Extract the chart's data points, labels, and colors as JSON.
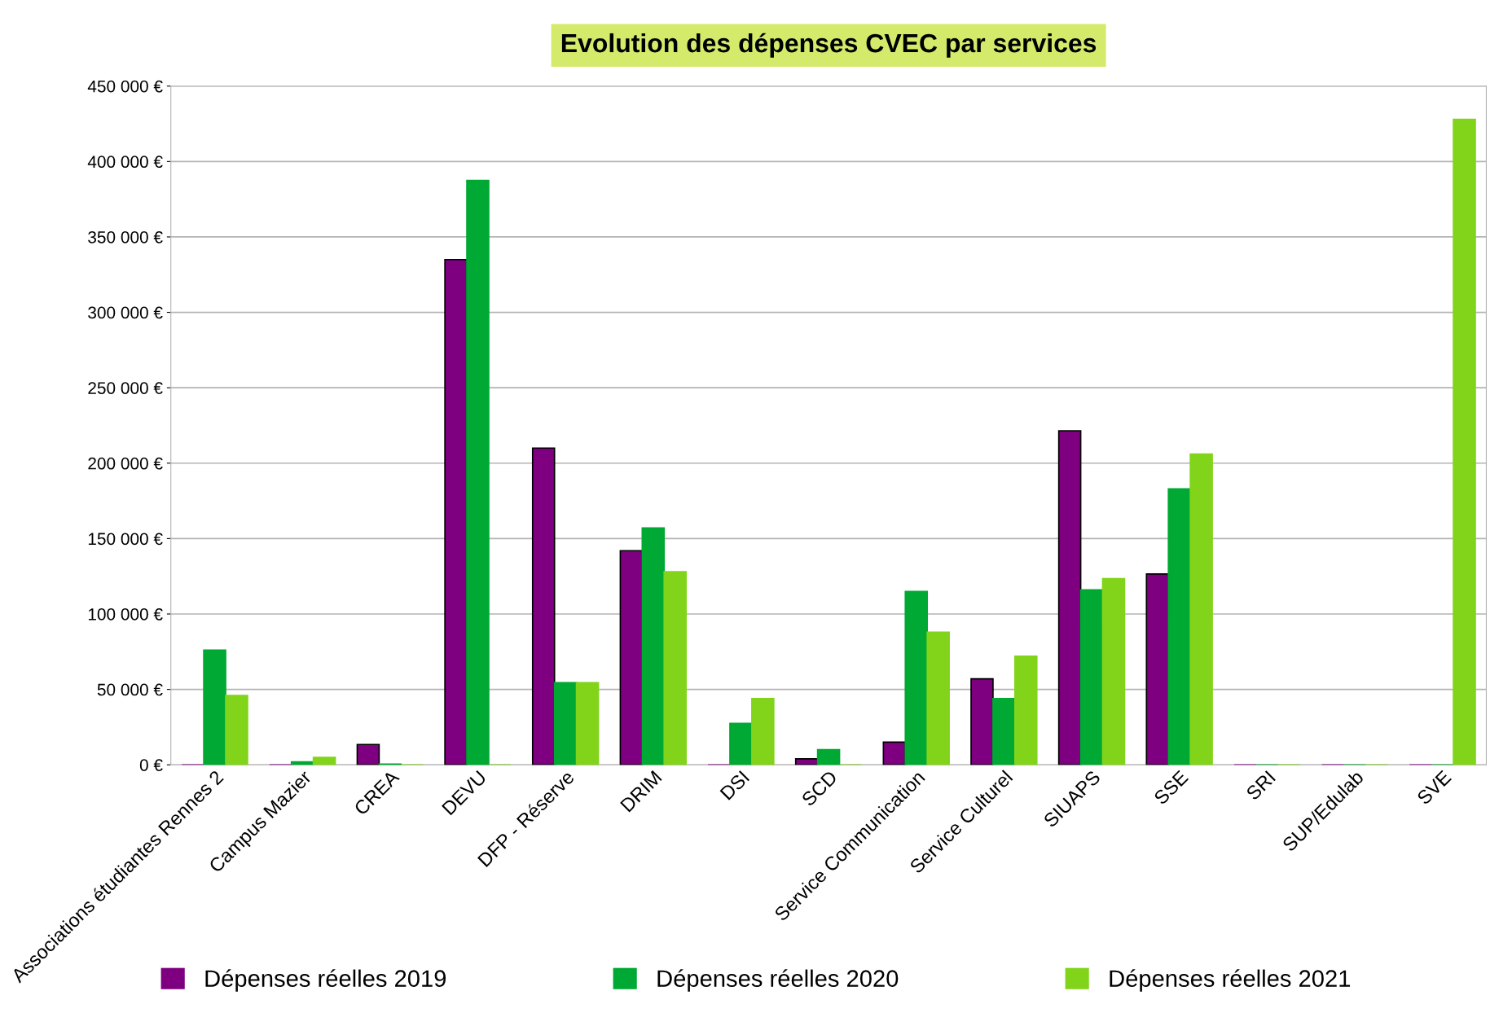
{
  "chart_data": {
    "type": "bar",
    "title": "Evolution des dépenses CVEC par services",
    "categories": [
      "Associations étudiantes Rennes 2",
      "Campus Mazier",
      "CREA",
      "DEVU",
      "DFP - Réserve",
      "DRIM",
      "DSI",
      "SCD",
      "Service Communication",
      "Service Culturel",
      "SIUAPS",
      "SSE",
      "SRI",
      "SUP/Edulab",
      "SVE"
    ],
    "series": [
      {
        "name": "Dépenses réelles 2019",
        "color": "#7e0080",
        "values": [
          0,
          0,
          13500,
          335000,
          210000,
          142000,
          0,
          4000,
          15000,
          57000,
          221500,
          126500,
          0,
          0,
          0
        ]
      },
      {
        "name": "Dépenses réelles 2020",
        "color": "#00a933",
        "values": [
          76000,
          2000,
          500,
          387500,
          54500,
          157000,
          27500,
          10000,
          115000,
          44000,
          116000,
          183000,
          0,
          0,
          0
        ]
      },
      {
        "name": "Dépenses réelles 2021",
        "color": "#81d41a",
        "values": [
          46000,
          5000,
          0,
          0,
          54500,
          128000,
          44000,
          0,
          88000,
          72000,
          123500,
          206000,
          0,
          0,
          428000
        ]
      }
    ],
    "ylim": [
      0,
      450000
    ],
    "yticks": [
      {
        "value": 0,
        "label": "0 €"
      },
      {
        "value": 50000,
        "label": "50 000 €"
      },
      {
        "value": 100000,
        "label": "100 000 €"
      },
      {
        "value": 150000,
        "label": "150 000 €"
      },
      {
        "value": 200000,
        "label": "200 000 €"
      },
      {
        "value": 250000,
        "label": "250 000 €"
      },
      {
        "value": 300000,
        "label": "300 000 €"
      },
      {
        "value": 350000,
        "label": "350 000 €"
      },
      {
        "value": 400000,
        "label": "400 000 €"
      },
      {
        "value": 450000,
        "label": "450 000 €"
      }
    ],
    "grid": "y",
    "legend": "bottom"
  }
}
